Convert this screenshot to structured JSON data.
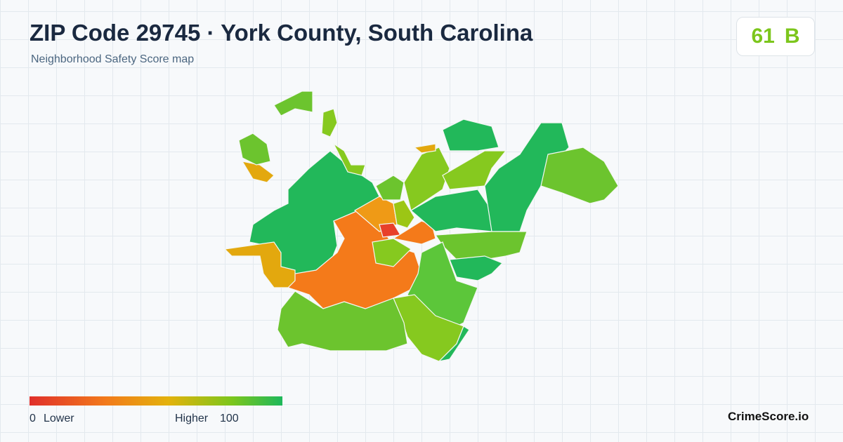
{
  "header": {
    "title": "ZIP Code 29745 · York County, South Carolina",
    "subtitle": "Neighborhood Safety Score map"
  },
  "score": {
    "value": "61",
    "grade": "B"
  },
  "legend": {
    "min": "0",
    "min_text": "Lower",
    "max_text": "Higher",
    "max": "100"
  },
  "brand": "CrimeScore.io"
}
